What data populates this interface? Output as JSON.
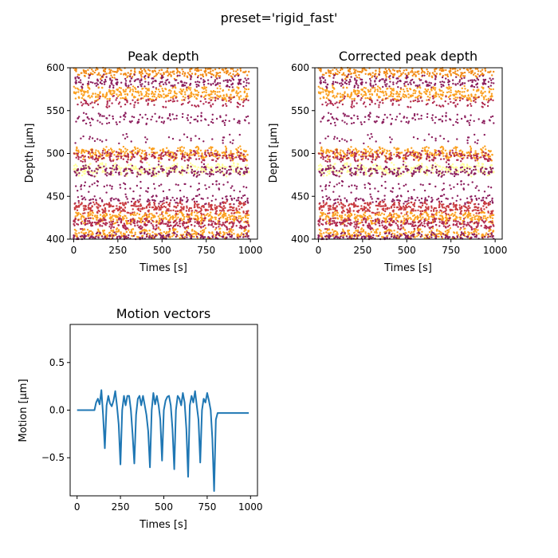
{
  "suptitle": "preset='rigid_fast'",
  "colors": {
    "motion_line": "#1f77b4",
    "raster_palette": [
      "#ffff99",
      "#fbd25a",
      "#fba020",
      "#f28a16",
      "#e06b2a",
      "#c83a3f",
      "#b02a4f",
      "#8c1f5e"
    ]
  },
  "chart_data": [
    {
      "type": "scatter",
      "title": "Peak depth",
      "xlabel": "Times [s]",
      "ylabel": "Depth [μm]",
      "xlim": [
        -20,
        1040
      ],
      "ylim": [
        400,
        600
      ],
      "xticks": [
        0,
        250,
        500,
        750,
        1000
      ],
      "yticks": [
        400,
        450,
        500,
        550,
        600
      ],
      "grid": false,
      "bands": [
        {
          "depth": 595,
          "spread": 6,
          "color": "#f28a16",
          "density": 0.9
        },
        {
          "depth": 584,
          "spread": 6,
          "color": "#8c1f5e",
          "density": 0.8
        },
        {
          "depth": 570,
          "spread": 7,
          "color": "#fba020",
          "density": 1.0
        },
        {
          "depth": 560,
          "spread": 5,
          "color": "#b02a4f",
          "density": 0.6
        },
        {
          "depth": 540,
          "spread": 6,
          "color": "#8c1f5e",
          "density": 0.6
        },
        {
          "depth": 517,
          "spread": 5,
          "color": "#8c1f5e",
          "density": 0.35
        },
        {
          "depth": 500,
          "spread": 6,
          "color": "#fba020",
          "density": 1.0
        },
        {
          "depth": 497,
          "spread": 5,
          "color": "#b02a4f",
          "density": 0.8
        },
        {
          "depth": 481,
          "spread": 6,
          "color": "#ffff99",
          "density": 0.9
        },
        {
          "depth": 480,
          "spread": 5,
          "color": "#8c1f5e",
          "density": 0.8
        },
        {
          "depth": 461,
          "spread": 5,
          "color": "#8c1f5e",
          "density": 0.45
        },
        {
          "depth": 446,
          "spread": 4,
          "color": "#8c1f5e",
          "density": 0.55
        },
        {
          "depth": 436,
          "spread": 6,
          "color": "#c83a3f",
          "density": 1.0
        },
        {
          "depth": 425,
          "spread": 5,
          "color": "#fba020",
          "density": 1.0
        },
        {
          "depth": 418,
          "spread": 5,
          "color": "#b02a4f",
          "density": 0.9
        },
        {
          "depth": 406,
          "spread": 5,
          "color": "#fba020",
          "density": 0.9
        },
        {
          "depth": 402,
          "spread": 4,
          "color": "#8c1f5e",
          "density": 0.8
        }
      ]
    },
    {
      "type": "scatter",
      "title": "Corrected peak depth",
      "xlabel": "Times [s]",
      "ylabel": "Depth [μm]",
      "xlim": [
        -20,
        1040
      ],
      "ylim": [
        400,
        600
      ],
      "xticks": [
        0,
        250,
        500,
        750,
        1000
      ],
      "yticks": [
        400,
        450,
        500,
        550,
        600
      ],
      "grid": false,
      "bands": [
        {
          "depth": 595,
          "spread": 6,
          "color": "#f28a16",
          "density": 0.9
        },
        {
          "depth": 584,
          "spread": 6,
          "color": "#8c1f5e",
          "density": 0.8
        },
        {
          "depth": 570,
          "spread": 7,
          "color": "#fba020",
          "density": 1.0
        },
        {
          "depth": 560,
          "spread": 5,
          "color": "#b02a4f",
          "density": 0.6
        },
        {
          "depth": 540,
          "spread": 6,
          "color": "#8c1f5e",
          "density": 0.6
        },
        {
          "depth": 517,
          "spread": 5,
          "color": "#8c1f5e",
          "density": 0.35
        },
        {
          "depth": 500,
          "spread": 6,
          "color": "#fba020",
          "density": 1.0
        },
        {
          "depth": 497,
          "spread": 5,
          "color": "#b02a4f",
          "density": 0.8
        },
        {
          "depth": 481,
          "spread": 6,
          "color": "#ffff99",
          "density": 0.9
        },
        {
          "depth": 480,
          "spread": 5,
          "color": "#8c1f5e",
          "density": 0.8
        },
        {
          "depth": 461,
          "spread": 5,
          "color": "#8c1f5e",
          "density": 0.45
        },
        {
          "depth": 446,
          "spread": 4,
          "color": "#8c1f5e",
          "density": 0.55
        },
        {
          "depth": 436,
          "spread": 6,
          "color": "#c83a3f",
          "density": 1.0
        },
        {
          "depth": 425,
          "spread": 5,
          "color": "#fba020",
          "density": 1.0
        },
        {
          "depth": 418,
          "spread": 5,
          "color": "#b02a4f",
          "density": 0.9
        },
        {
          "depth": 406,
          "spread": 5,
          "color": "#fba020",
          "density": 0.9
        },
        {
          "depth": 402,
          "spread": 4,
          "color": "#8c1f5e",
          "density": 0.8
        }
      ]
    },
    {
      "type": "line",
      "title": "Motion vectors",
      "xlabel": "Times [s]",
      "ylabel": "Motion [μm]",
      "xlim": [
        -40,
        1040
      ],
      "ylim": [
        -0.9,
        0.9
      ],
      "xticks": [
        0,
        250,
        500,
        750,
        1000
      ],
      "yticks": [
        -0.5,
        0.0,
        0.5
      ],
      "ytick_labels": [
        "−0.5",
        "0.0",
        "0.5"
      ],
      "grid": false,
      "series": [
        {
          "x": [
            0,
            20,
            40,
            60,
            80,
            100,
            110,
            120,
            130,
            140,
            150,
            160,
            170,
            180,
            190,
            200,
            210,
            220,
            230,
            240,
            250,
            260,
            270,
            280,
            290,
            300,
            310,
            320,
            330,
            340,
            350,
            360,
            370,
            380,
            390,
            400,
            410,
            420,
            430,
            440,
            450,
            460,
            470,
            480,
            490,
            500,
            510,
            520,
            530,
            540,
            550,
            560,
            570,
            580,
            590,
            600,
            610,
            620,
            630,
            640,
            650,
            660,
            670,
            680,
            690,
            700,
            710,
            720,
            730,
            740,
            750,
            760,
            770,
            780,
            790,
            800,
            810,
            820,
            830,
            840,
            850,
            860,
            870,
            880,
            890,
            900,
            910,
            920,
            930,
            940,
            950,
            960,
            970,
            980,
            990
          ],
          "y": [
            0.0,
            0.0,
            0.0,
            0.0,
            0.0,
            0.0,
            0.08,
            0.12,
            0.06,
            0.21,
            -0.05,
            -0.4,
            0.05,
            0.15,
            0.07,
            0.04,
            0.1,
            0.2,
            0.04,
            -0.15,
            -0.57,
            0.0,
            0.15,
            0.05,
            0.15,
            0.15,
            0.0,
            -0.25,
            -0.56,
            -0.05,
            0.12,
            0.15,
            0.05,
            0.15,
            0.05,
            -0.05,
            -0.22,
            -0.6,
            0.0,
            0.18,
            0.06,
            0.15,
            0.05,
            -0.1,
            -0.53,
            0.0,
            0.1,
            0.14,
            0.15,
            0.05,
            -0.2,
            -0.62,
            0.0,
            0.15,
            0.12,
            0.05,
            0.18,
            0.08,
            -0.2,
            -0.7,
            0.05,
            0.15,
            0.08,
            0.2,
            0.05,
            -0.1,
            -0.55,
            0.0,
            0.12,
            0.08,
            0.18,
            0.1,
            0.0,
            -0.3,
            -0.85,
            -0.1,
            -0.03,
            -0.03,
            -0.03,
            -0.03,
            -0.03,
            -0.03,
            -0.03,
            -0.03,
            -0.03,
            -0.03,
            -0.03,
            -0.03,
            -0.03,
            -0.03,
            -0.03,
            -0.03,
            -0.03,
            -0.03,
            -0.03
          ]
        }
      ]
    }
  ]
}
